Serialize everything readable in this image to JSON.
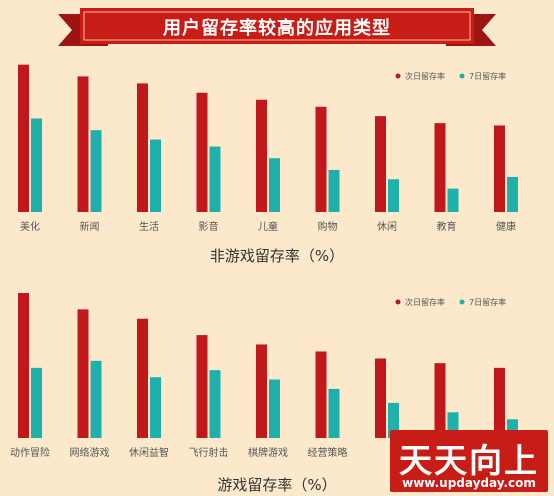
{
  "header": {
    "title": "用户留存率较高的应用类型"
  },
  "colors": {
    "background": "#fce9cc",
    "next_day": "#c0181b",
    "seven_day": "#1fb0ab",
    "banner": "#c81d16"
  },
  "chart_data": [
    {
      "type": "bar",
      "title": "非游戏留存率（%）",
      "categories": [
        "美化",
        "新闻",
        "生活",
        "影音",
        "儿童",
        "购物",
        "休闲",
        "教育",
        "健康"
      ],
      "series": [
        {
          "name": "次日留存率",
          "values": [
            63,
            58,
            55,
            51,
            48,
            45,
            41,
            38,
            37
          ]
        },
        {
          "name": "7日留存率",
          "values": [
            40,
            35,
            31,
            28,
            23,
            18,
            14,
            10,
            15
          ]
        }
      ],
      "legend_position": "top-right",
      "grid": false
    },
    {
      "type": "bar",
      "title": "游戏留存率（%）",
      "categories": [
        "动作冒险",
        "网络游戏",
        "休闲益智",
        "飞行射击",
        "棋牌游戏",
        "经营策略",
        "",
        "",
        ""
      ],
      "series": [
        {
          "name": "次日留存率",
          "values": [
            62,
            55,
            51,
            44,
            40,
            37,
            34,
            32,
            30
          ]
        },
        {
          "name": "7日留存率",
          "values": [
            30,
            33,
            26,
            29,
            25,
            21,
            15,
            11,
            8
          ]
        }
      ],
      "legend_position": "top-right",
      "grid": false
    }
  ],
  "watermark": {
    "main": "天天向上",
    "url": "www.updayday.com"
  }
}
